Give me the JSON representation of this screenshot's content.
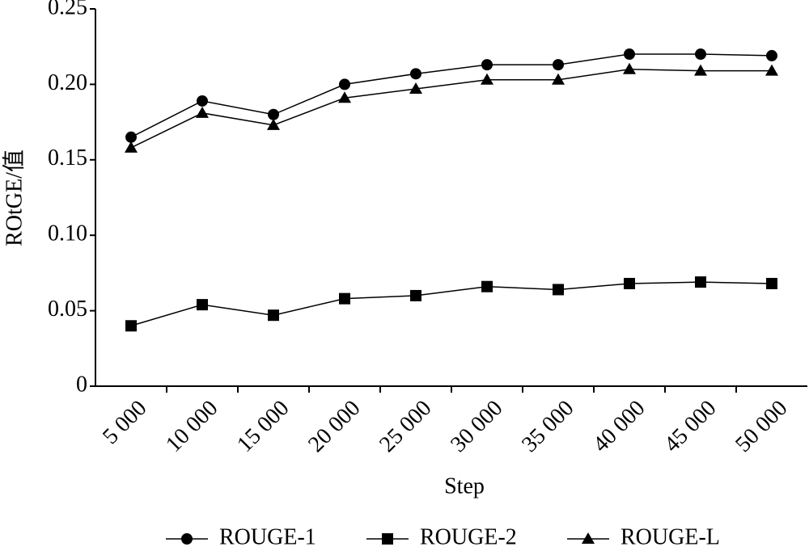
{
  "chart_data": {
    "type": "line",
    "x_label": "Step",
    "y_label": "ROtGE/值",
    "categories": [
      "5 000",
      "10 000",
      "15 000",
      "20 000",
      "25 000",
      "30 000",
      "35 000",
      "40 000",
      "45 000",
      "50 000"
    ],
    "series": [
      {
        "name": "ROUGE-1",
        "color": "#000000",
        "marker": "circle",
        "values": [
          0.165,
          0.189,
          0.18,
          0.2,
          0.207,
          0.213,
          0.213,
          0.22,
          0.22,
          0.219
        ]
      },
      {
        "name": "ROUGE-2",
        "color": "#000000",
        "marker": "square",
        "values": [
          0.04,
          0.054,
          0.047,
          0.058,
          0.06,
          0.066,
          0.064,
          0.068,
          0.069,
          0.068
        ]
      },
      {
        "name": "ROUGE-L",
        "color": "#000000",
        "marker": "triangle",
        "values": [
          0.158,
          0.181,
          0.173,
          0.191,
          0.197,
          0.203,
          0.203,
          0.21,
          0.209,
          0.209
        ]
      }
    ],
    "ylim": [
      0,
      0.25
    ],
    "yticks": [
      0,
      0.05,
      {
        "value": 0.1,
        "label": "0.10"
      },
      0.15,
      {
        "value": 0.2,
        "label": "0.20"
      },
      0.25
    ],
    "grid": false
  }
}
